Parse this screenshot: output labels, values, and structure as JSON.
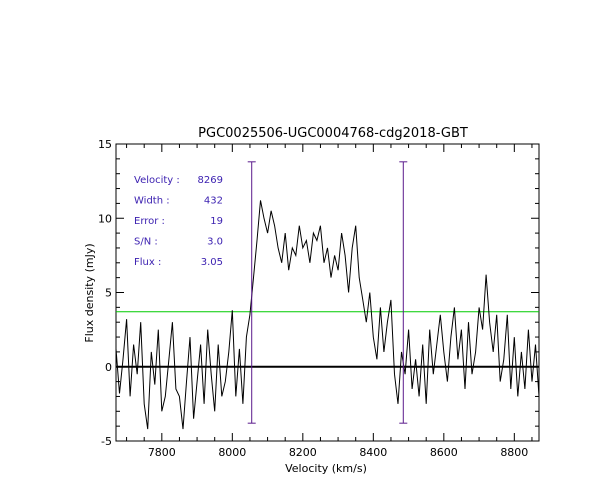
{
  "chart_data": {
    "type": "line",
    "title": "PGC0025506-UGC0004768-cdg2018-GBT",
    "xlabel": "Velocity (km/s)",
    "ylabel": "Flux density (mJy)",
    "xlim": [
      7670,
      8870
    ],
    "ylim": [
      -5,
      15
    ],
    "xticks": [
      7800,
      8000,
      8200,
      8400,
      8600,
      8800
    ],
    "yticks": [
      -5,
      0,
      5,
      10,
      15
    ],
    "grid": false,
    "annotations": [
      {
        "label": "Velocity :",
        "value": "8269"
      },
      {
        "label": "Width :",
        "value": "432"
      },
      {
        "label": "Error :",
        "value": "19"
      },
      {
        "label": "S/N :",
        "value": "3.0"
      },
      {
        "label": "Flux :",
        "value": "3.05"
      }
    ],
    "reference_lines": {
      "zero_level": 0,
      "threshold_level": 3.7,
      "window_left": 8055,
      "window_right": 8485
    },
    "colors": {
      "spectrum": "#000000",
      "threshold": "#00cc00",
      "window": "#5a1a8c",
      "annotation": "#3a1fb0"
    },
    "series": [
      {
        "x": [
          7670,
          7680,
          7690,
          7700,
          7710,
          7720,
          7730,
          7740,
          7750,
          7760,
          7770,
          7780,
          7790,
          7800,
          7810,
          7820,
          7830,
          7840,
          7850,
          7860,
          7870,
          7880,
          7890,
          7900,
          7910,
          7920,
          7930,
          7940,
          7950,
          7960,
          7970,
          7980,
          7990,
          8000,
          8010,
          8020,
          8030,
          8040,
          8050,
          8060,
          8070,
          8080,
          8090,
          8100,
          8110,
          8120,
          8130,
          8140,
          8150,
          8160,
          8170,
          8180,
          8190,
          8200,
          8210,
          8220,
          8230,
          8240,
          8250,
          8260,
          8270,
          8280,
          8290,
          8300,
          8310,
          8320,
          8330,
          8340,
          8350,
          8360,
          8370,
          8380,
          8390,
          8400,
          8410,
          8420,
          8430,
          8440,
          8450,
          8460,
          8470,
          8480,
          8490,
          8500,
          8510,
          8520,
          8530,
          8540,
          8550,
          8560,
          8570,
          8580,
          8590,
          8600,
          8610,
          8620,
          8630,
          8640,
          8650,
          8660,
          8670,
          8680,
          8690,
          8700,
          8710,
          8720,
          8730,
          8740,
          8750,
          8760,
          8770,
          8780,
          8790,
          8800,
          8810,
          8820,
          8830,
          8840,
          8850,
          8860,
          8870
        ],
        "values": [
          1.2,
          -1.8,
          0.5,
          3.2,
          -2.0,
          1.5,
          -0.5,
          3.0,
          -2.5,
          -4.2,
          1.0,
          -1.2,
          2.5,
          -3.0,
          -2.0,
          0.5,
          3.0,
          -1.5,
          -2.0,
          -4.2,
          -1.0,
          2.0,
          -3.5,
          -1.0,
          1.5,
          -2.5,
          2.5,
          -0.5,
          -3.0,
          1.5,
          -2.0,
          -1.0,
          1.0,
          3.8,
          -2.0,
          1.2,
          -2.5,
          2.0,
          3.5,
          6.0,
          8.5,
          11.2,
          10.0,
          9.0,
          10.5,
          9.5,
          8.0,
          7.0,
          9.0,
          6.5,
          8.0,
          7.5,
          9.5,
          8.0,
          8.5,
          7.0,
          9.0,
          8.5,
          9.5,
          7.0,
          8.0,
          6.0,
          7.5,
          6.5,
          9.0,
          7.5,
          5.0,
          8.0,
          9.5,
          6.0,
          4.5,
          3.0,
          5.0,
          2.0,
          0.5,
          4.0,
          1.0,
          3.0,
          4.5,
          -0.5,
          -2.5,
          1.0,
          -0.5,
          2.5,
          -1.5,
          0.5,
          -2.0,
          1.5,
          -2.5,
          2.5,
          -0.5,
          1.5,
          3.5,
          1.0,
          -1.0,
          2.0,
          4.0,
          0.5,
          2.5,
          -1.5,
          3.0,
          -0.5,
          1.0,
          4.0,
          2.5,
          6.2,
          3.0,
          1.0,
          3.5,
          -1.0,
          0.5,
          3.5,
          -1.5,
          2.0,
          -2.0,
          1.0,
          -1.5,
          2.5,
          -1.0,
          1.5,
          -2.0
        ]
      }
    ]
  }
}
